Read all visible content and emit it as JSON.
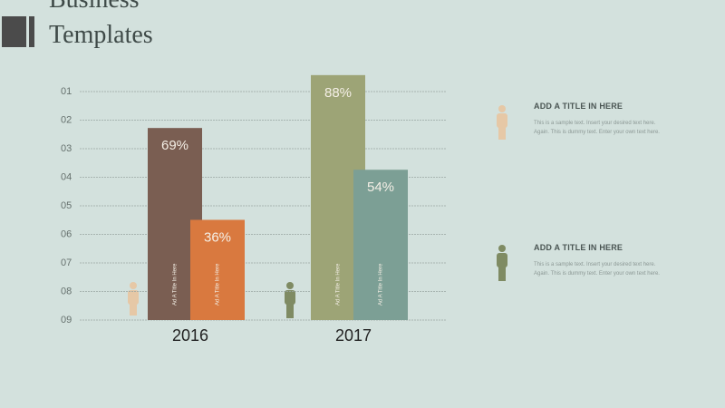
{
  "header": {
    "title_lines": [
      "Business",
      "Templates"
    ]
  },
  "chart_data": {
    "type": "bar",
    "categories": [
      "2016",
      "2017"
    ],
    "row_labels": [
      "01",
      "02",
      "03",
      "04",
      "05",
      "06",
      "07",
      "08",
      "09"
    ],
    "ylim": [
      0,
      100
    ],
    "series": [
      {
        "colors": [
          "#7a5e52",
          "#9da476"
        ],
        "values": [
          69,
          88
        ],
        "value_labels": [
          "69%",
          "88%"
        ],
        "bar_labels": [
          "Ad A Title In Here",
          "Ad A Title In Here"
        ]
      },
      {
        "colors": [
          "#d9793f",
          "#7c9f95"
        ],
        "values": [
          36,
          54
        ],
        "value_labels": [
          "36%",
          "54%"
        ],
        "bar_labels": [
          "Ad A Title In Here",
          "Ad A Title In Here"
        ]
      }
    ]
  },
  "panels": [
    {
      "title": "ADD A TITLE IN HERE",
      "text": "This is a sample text. Insert your desired text here. Again. This is dummy text. Enter your own text here."
    },
    {
      "title": "ADD A TITLE IN HERE",
      "text": "This is a sample text. Insert your desired text here. Again. This is dummy text. Enter your own text here."
    }
  ]
}
